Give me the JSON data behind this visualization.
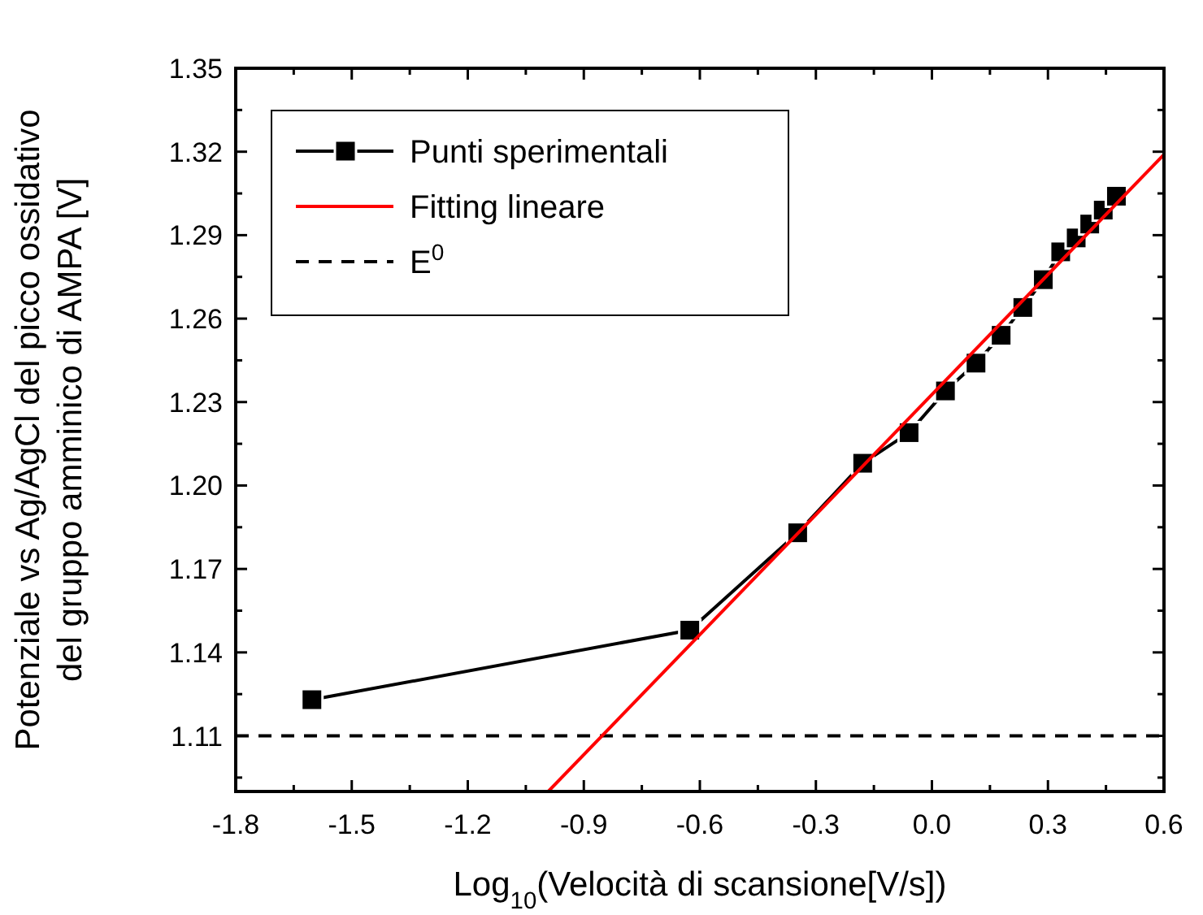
{
  "chart_data": {
    "type": "line",
    "xlabel": "Log$_{10}$(Velocità di scansione[V/s])",
    "ylabel": "Potenziale vs Ag/AgCl del picco ossidativo\ndel gruppo amminico di AMPA [V]",
    "xlim": [
      -1.8,
      0.6
    ],
    "ylim": [
      1.09,
      1.35
    ],
    "xticks": [
      -1.8,
      {
        "value": -1.65,
        "label": null
      },
      -1.5,
      {
        "value": -1.35,
        "label": null
      },
      -1.2,
      {
        "value": -1.05,
        "label": null
      },
      -0.9,
      {
        "value": -0.75,
        "label": null
      },
      -0.6,
      {
        "value": -0.45,
        "label": null
      },
      -0.3,
      {
        "value": -0.15,
        "label": null
      },
      {
        "value": 0,
        "label": "0.0"
      },
      {
        "value": 0.15,
        "label": null
      },
      0.3,
      {
        "value": 0.45,
        "label": null
      },
      0.6
    ],
    "yticks": [
      {
        "value": 1.095,
        "label": null
      },
      1.11,
      {
        "value": 1.125,
        "label": null
      },
      1.14,
      {
        "value": 1.155,
        "label": null
      },
      1.17,
      {
        "value": 1.185,
        "label": null
      },
      {
        "value": 1.2,
        "label": "1.20"
      },
      {
        "value": 1.215,
        "label": null
      },
      1.23,
      {
        "value": 1.245,
        "label": null
      },
      1.26,
      {
        "value": 1.275,
        "label": null
      },
      1.29,
      {
        "value": 1.305,
        "label": null
      },
      1.32,
      {
        "value": 1.335,
        "label": null
      },
      1.35
    ],
    "series": [
      {
        "name": "Punti sperimentali",
        "color": "#000000",
        "marker": "square",
        "line_style": "solid",
        "x": [
          -1.603,
          -0.626,
          -0.347,
          -0.179,
          -0.059,
          0.035,
          0.114,
          0.179,
          0.235,
          0.288,
          0.333,
          0.373,
          0.408,
          0.443,
          0.477
        ],
        "values": [
          1.123,
          1.148,
          1.183,
          1.208,
          1.219,
          1.234,
          1.244,
          1.254,
          1.264,
          1.274,
          1.284,
          1.289,
          1.294,
          1.299,
          1.304
        ]
      },
      {
        "name": "Fitting lineare",
        "color": "#ff0000",
        "marker": "none",
        "line_style": "solid",
        "x": [
          -0.992,
          0.6
        ],
        "values": [
          1.09,
          1.319
        ]
      }
    ],
    "ref_lines": [
      {
        "axis": "y",
        "value": 1.11,
        "label": "E$^{0}$",
        "color": "#000000",
        "line_style": "dashed"
      }
    ],
    "legend": "top left",
    "grid": false
  }
}
